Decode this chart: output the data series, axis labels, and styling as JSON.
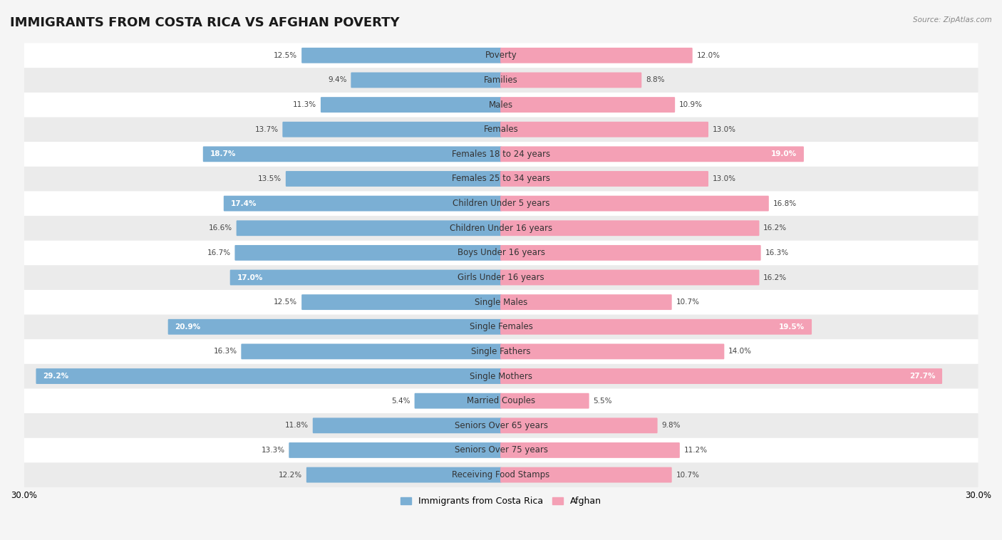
{
  "title": "IMMIGRANTS FROM COSTA RICA VS AFGHAN POVERTY",
  "source": "Source: ZipAtlas.com",
  "categories": [
    "Poverty",
    "Families",
    "Males",
    "Females",
    "Females 18 to 24 years",
    "Females 25 to 34 years",
    "Children Under 5 years",
    "Children Under 16 years",
    "Boys Under 16 years",
    "Girls Under 16 years",
    "Single Males",
    "Single Females",
    "Single Fathers",
    "Single Mothers",
    "Married Couples",
    "Seniors Over 65 years",
    "Seniors Over 75 years",
    "Receiving Food Stamps"
  ],
  "costa_rica": [
    12.5,
    9.4,
    11.3,
    13.7,
    18.7,
    13.5,
    17.4,
    16.6,
    16.7,
    17.0,
    12.5,
    20.9,
    16.3,
    29.2,
    5.4,
    11.8,
    13.3,
    12.2
  ],
  "afghan": [
    12.0,
    8.8,
    10.9,
    13.0,
    19.0,
    13.0,
    16.8,
    16.2,
    16.3,
    16.2,
    10.7,
    19.5,
    14.0,
    27.7,
    5.5,
    9.8,
    11.2,
    10.7
  ],
  "costa_rica_color": "#7bafd4",
  "afghan_color": "#f4a0b5",
  "axis_max": 30.0,
  "background_color": "#f5f5f5",
  "row_color_light": "#ffffff",
  "row_color_dark": "#ebebeb",
  "title_fontsize": 13,
  "label_fontsize": 8.5,
  "value_fontsize": 7.5,
  "legend_fontsize": 9,
  "inside_label_threshold": 17.0
}
